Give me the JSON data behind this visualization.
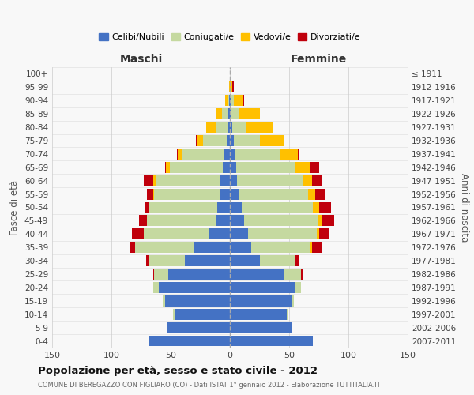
{
  "age_groups": [
    "0-4",
    "5-9",
    "10-14",
    "15-19",
    "20-24",
    "25-29",
    "30-34",
    "35-39",
    "40-44",
    "45-49",
    "50-54",
    "55-59",
    "60-64",
    "65-69",
    "70-74",
    "75-79",
    "80-84",
    "85-89",
    "90-94",
    "95-99",
    "100+"
  ],
  "birth_years": [
    "2007-2011",
    "2002-2006",
    "1997-2001",
    "1992-1996",
    "1987-1991",
    "1982-1986",
    "1977-1981",
    "1972-1976",
    "1967-1971",
    "1962-1966",
    "1957-1961",
    "1952-1956",
    "1947-1951",
    "1942-1946",
    "1937-1941",
    "1932-1936",
    "1927-1931",
    "1922-1926",
    "1917-1921",
    "1912-1916",
    "≤ 1911"
  ],
  "maschi": {
    "celibi": [
      68,
      53,
      47,
      55,
      60,
      52,
      38,
      30,
      18,
      12,
      11,
      9,
      8,
      6,
      5,
      3,
      2,
      2,
      1,
      0,
      0
    ],
    "coniugati": [
      0,
      0,
      1,
      2,
      5,
      12,
      30,
      50,
      55,
      58,
      57,
      55,
      55,
      45,
      35,
      20,
      10,
      5,
      1,
      0,
      0
    ],
    "vedovi": [
      0,
      0,
      0,
      0,
      0,
      0,
      0,
      0,
      0,
      0,
      1,
      1,
      2,
      3,
      4,
      5,
      8,
      5,
      2,
      1,
      0
    ],
    "divorziati": [
      0,
      0,
      0,
      0,
      0,
      1,
      3,
      4,
      10,
      7,
      3,
      5,
      8,
      1,
      1,
      1,
      0,
      0,
      0,
      0,
      0
    ]
  },
  "femmine": {
    "nubili": [
      70,
      52,
      48,
      52,
      55,
      45,
      25,
      18,
      15,
      12,
      10,
      8,
      6,
      5,
      4,
      3,
      2,
      1,
      1,
      0,
      0
    ],
    "coniugate": [
      0,
      0,
      1,
      2,
      5,
      15,
      30,
      50,
      58,
      62,
      60,
      58,
      55,
      50,
      38,
      22,
      12,
      6,
      2,
      0,
      0
    ],
    "vedove": [
      0,
      0,
      0,
      0,
      0,
      0,
      0,
      1,
      2,
      4,
      5,
      6,
      8,
      12,
      15,
      20,
      22,
      18,
      8,
      2,
      0
    ],
    "divorziate": [
      0,
      0,
      0,
      0,
      0,
      1,
      3,
      8,
      8,
      10,
      10,
      8,
      8,
      8,
      1,
      1,
      0,
      0,
      1,
      1,
      0
    ]
  },
  "colors": {
    "celibi": "#4472c4",
    "coniugati": "#c5d9a0",
    "vedovi": "#ffc000",
    "divorziati": "#c0000c"
  },
  "xlim": 150,
  "title": "Popolazione per età, sesso e stato civile - 2012",
  "subtitle": "COMUNE DI BEREGAZZO CON FIGLIARO (CO) - Dati ISTAT 1° gennaio 2012 - Elaborazione TUTTITALIA.IT",
  "ylabel_left": "Fasce di età",
  "ylabel_right": "Anni di nascita",
  "xlabel_left": "Maschi",
  "xlabel_right": "Femmine",
  "legend_labels": [
    "Celibi/Nubili",
    "Coniugati/e",
    "Vedovi/e",
    "Divorziati/e"
  ],
  "background_color": "#f8f8f8",
  "grid_color": "#cccccc"
}
